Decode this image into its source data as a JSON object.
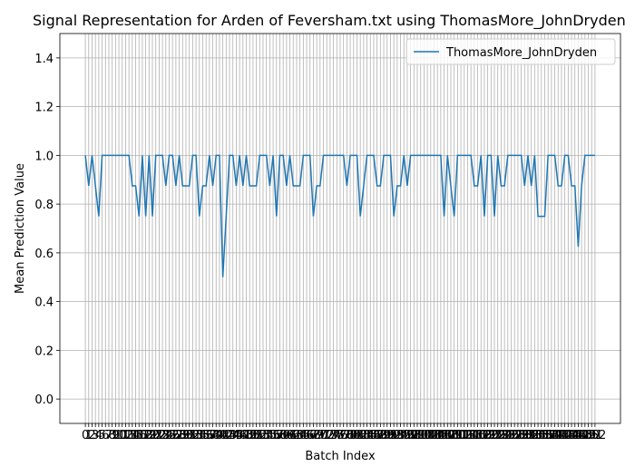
{
  "chart_data": {
    "type": "line",
    "title": "Signal Representation for Arden of Feversham.txt using ThomasMore_JohnDryden",
    "x_label": "Batch Index",
    "y_label": "Mean Prediction Value",
    "x": [
      0,
      1,
      2,
      3,
      4,
      5,
      6,
      7,
      8,
      9,
      10,
      11,
      12,
      13,
      14,
      15,
      16,
      17,
      18,
      19,
      20,
      21,
      22,
      23,
      24,
      25,
      26,
      27,
      28,
      29,
      30,
      31,
      32,
      33,
      34,
      35,
      36,
      37,
      38,
      39,
      40,
      41,
      42,
      43,
      44,
      45,
      46,
      47,
      48,
      49,
      50,
      51,
      52,
      53,
      54,
      55,
      56,
      57,
      58,
      59,
      60,
      61,
      62,
      63,
      64,
      65,
      66,
      67,
      68,
      69,
      70,
      71,
      72,
      73,
      74,
      75,
      76,
      77,
      78,
      79,
      80,
      81,
      82,
      83,
      84,
      85,
      86,
      87,
      88,
      89,
      90,
      91,
      92,
      93,
      94,
      95,
      96,
      97,
      98,
      99,
      100,
      101,
      102,
      103,
      104,
      105,
      106,
      107,
      108,
      109,
      110,
      111,
      112,
      113,
      114,
      115,
      116,
      117,
      118,
      119,
      120,
      121,
      122,
      123,
      124,
      125,
      126,
      127,
      128,
      129,
      130,
      131,
      132,
      133,
      134,
      135,
      136,
      137,
      138,
      139,
      140,
      141,
      142,
      143,
      144,
      145,
      146,
      147,
      148,
      149,
      150,
      151,
      152
    ],
    "series": [
      {
        "name": "ThomasMore_JohnDryden",
        "color": "#1f77b4",
        "values": [
          1,
          0.875,
          1,
          0.875,
          0.75,
          1,
          1,
          1,
          1,
          1,
          1,
          1,
          1,
          1,
          0.875,
          0.875,
          0.75,
          1,
          0.75,
          1,
          0.75,
          1,
          1,
          1,
          0.875,
          1,
          1,
          0.875,
          1,
          0.875,
          0.875,
          0.875,
          1,
          1,
          0.75,
          0.875,
          0.875,
          1,
          0.875,
          1,
          1,
          0.5,
          0.75,
          1,
          1,
          0.875,
          1,
          0.875,
          1,
          0.875,
          0.875,
          0.875,
          1,
          1,
          1,
          0.875,
          1,
          0.75,
          1,
          1,
          0.875,
          1,
          0.875,
          0.875,
          0.875,
          1,
          1,
          1,
          0.75,
          0.875,
          0.875,
          1,
          1,
          1,
          1,
          1,
          1,
          1,
          0.875,
          1,
          1,
          1,
          0.75,
          0.875,
          1,
          1,
          1,
          0.875,
          0.875,
          1,
          1,
          1,
          0.75,
          0.875,
          0.875,
          1,
          0.875,
          1,
          1,
          1,
          1,
          1,
          1,
          1,
          1,
          1,
          1,
          0.75,
          1,
          0.875,
          0.75,
          1,
          1,
          1,
          1,
          1,
          0.875,
          0.875,
          1,
          0.75,
          1,
          1,
          0.75,
          1,
          0.875,
          0.875,
          1,
          1,
          1,
          1,
          1,
          0.875,
          1,
          0.875,
          1,
          0.75,
          0.75,
          0.75,
          1,
          1,
          1,
          0.875,
          0.875,
          1,
          1,
          0.875,
          0.875,
          0.625,
          0.875,
          1,
          1,
          1,
          1
        ]
      }
    ],
    "xlim": [
      -7.6,
      159.6
    ],
    "ylim": [
      -0.1,
      1.5
    ],
    "yticks": [
      {
        "value": 0,
        "label": "0.0"
      },
      {
        "value": 0.2,
        "label": "0.2"
      },
      {
        "value": 0.4,
        "label": "0.4"
      },
      {
        "value": 0.6,
        "label": "0.6"
      },
      {
        "value": 0.8,
        "label": "0.8"
      },
      {
        "value": 1,
        "label": "1.0"
      },
      {
        "value": 1.2,
        "label": "1.2"
      },
      {
        "value": 1.4,
        "label": "1.4"
      }
    ],
    "grid": true,
    "legend": "upper right"
  }
}
